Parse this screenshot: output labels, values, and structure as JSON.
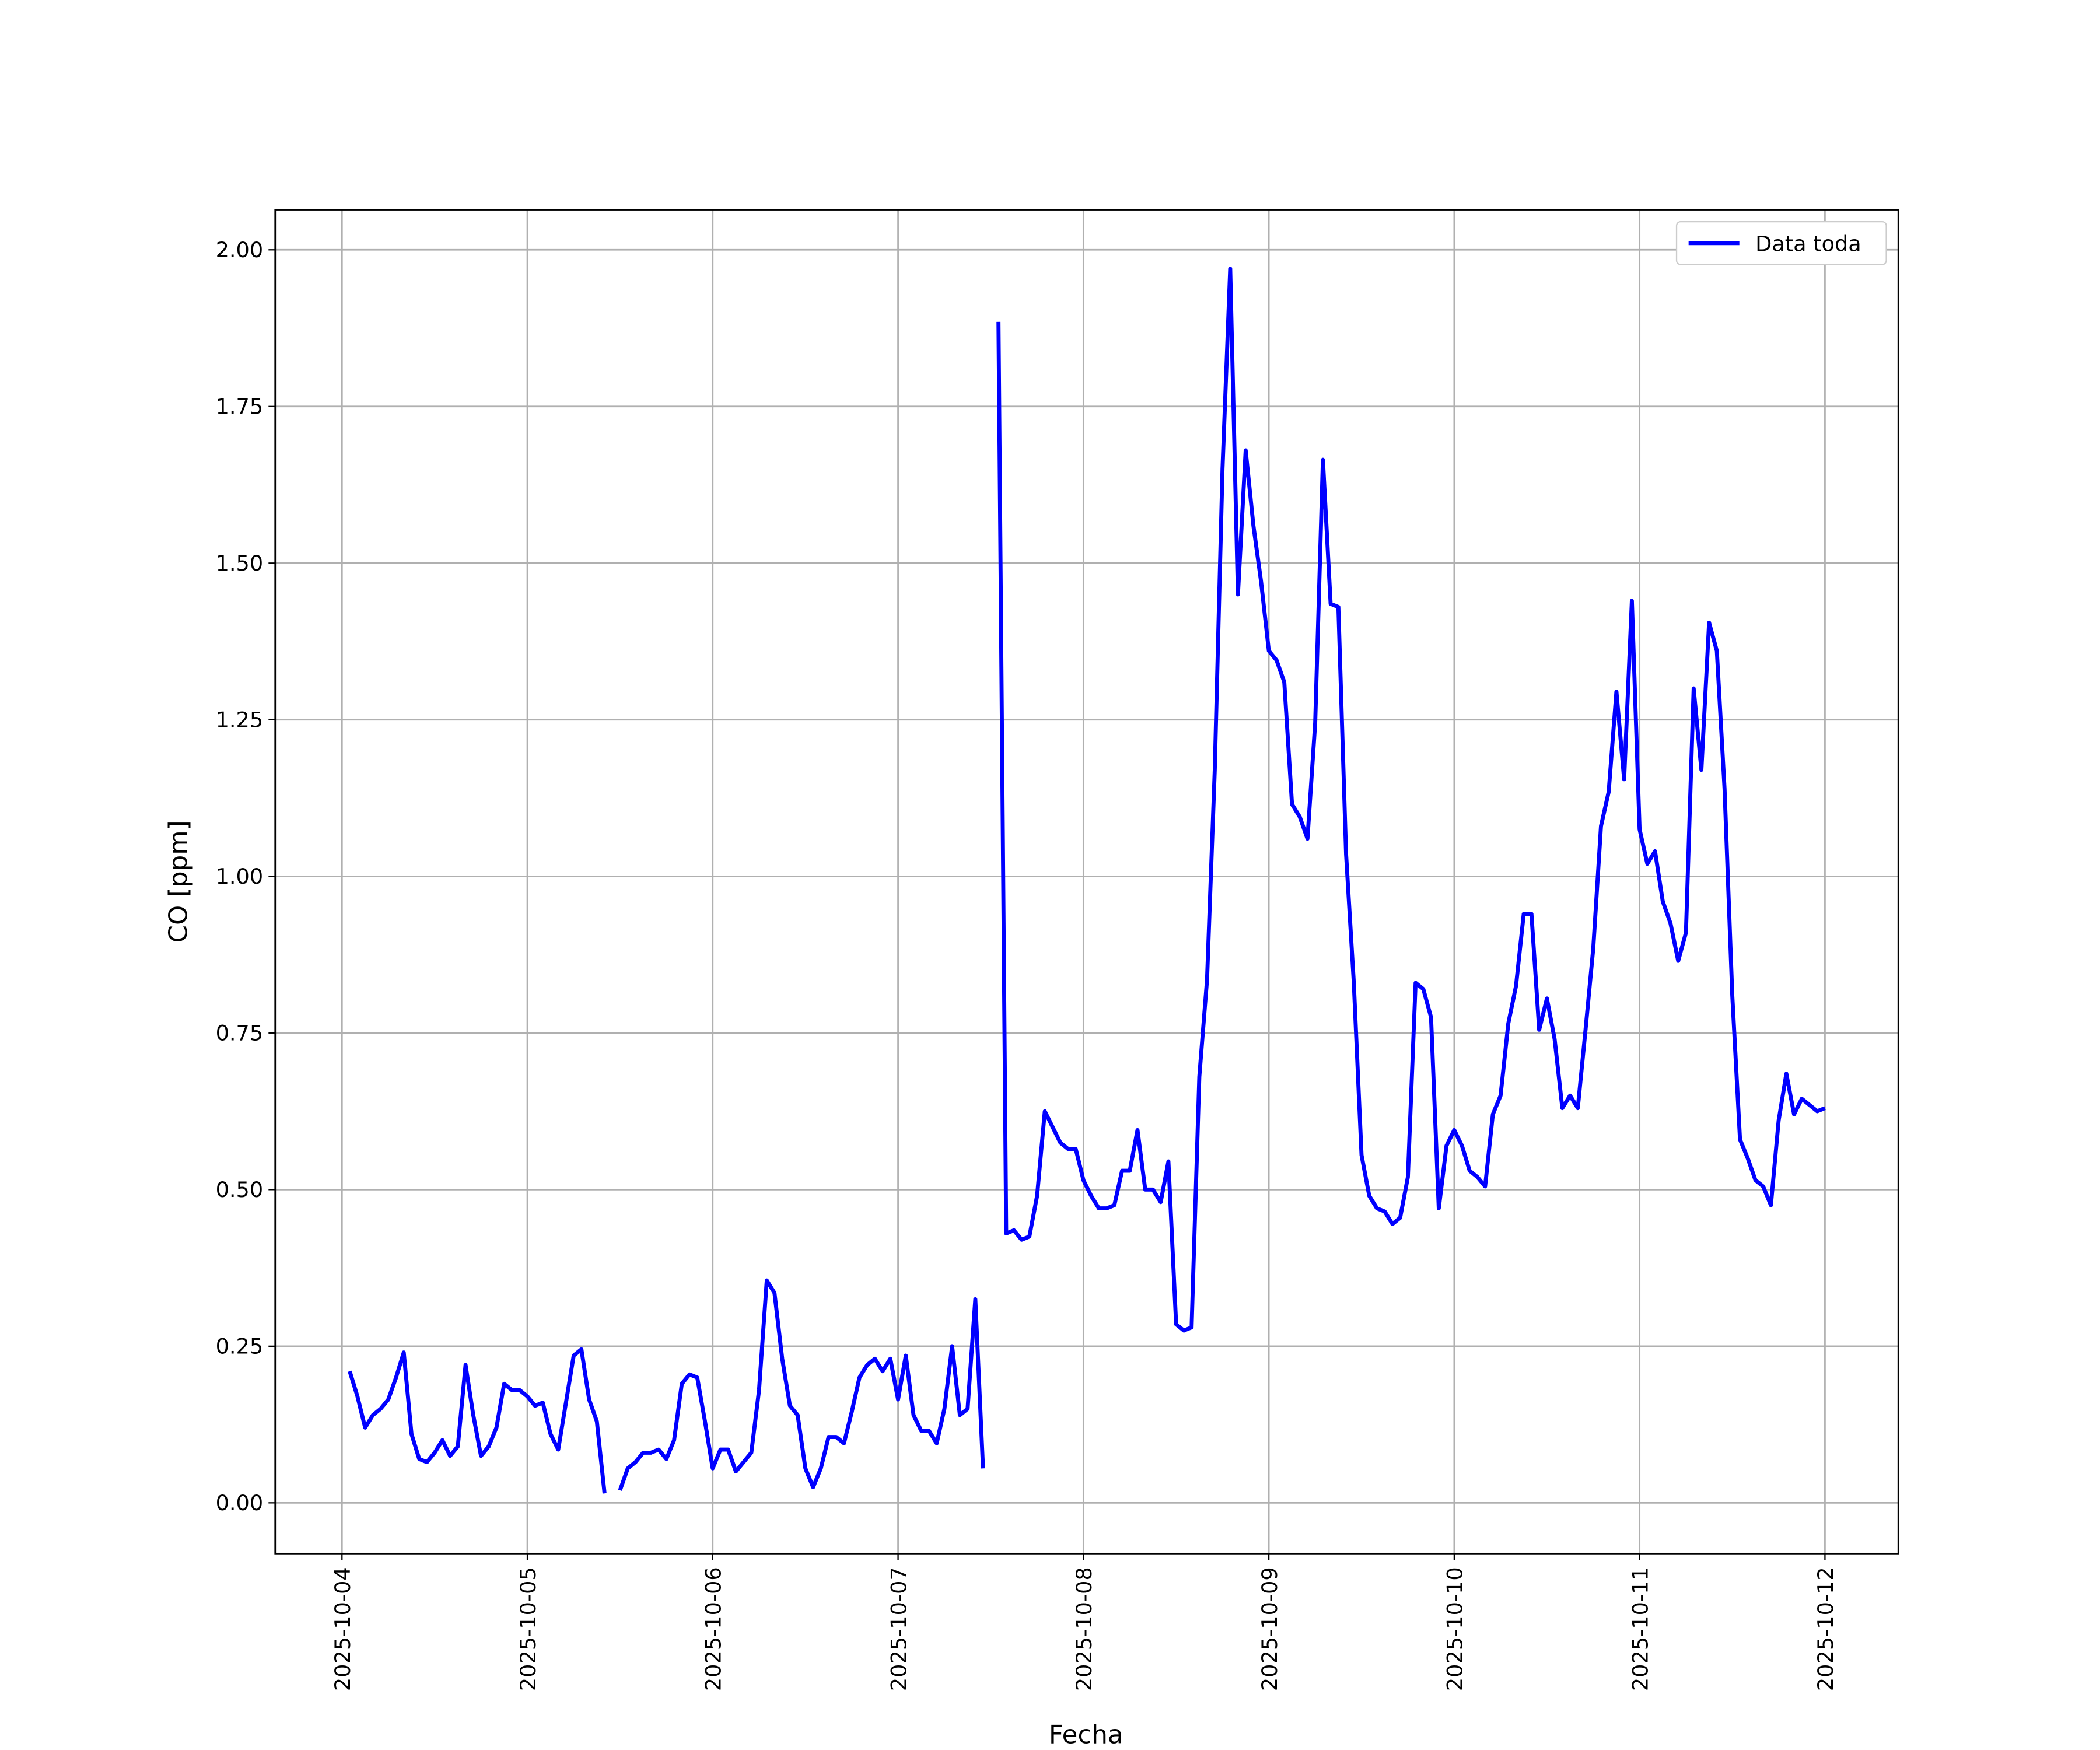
{
  "chart_data": {
    "type": "line",
    "xlabel": "Fecha",
    "ylabel": "CO [ppm]",
    "x": [
      "2025-10-04 01:00",
      "2025-10-04 02:00",
      "2025-10-04 03:00",
      "2025-10-04 04:00",
      "2025-10-04 05:00",
      "2025-10-04 06:00",
      "2025-10-04 07:00",
      "2025-10-04 08:00",
      "2025-10-04 09:00",
      "2025-10-04 10:00",
      "2025-10-04 11:00",
      "2025-10-04 12:00",
      "2025-10-04 13:00",
      "2025-10-04 14:00",
      "2025-10-04 15:00",
      "2025-10-04 16:00",
      "2025-10-04 17:00",
      "2025-10-04 18:00",
      "2025-10-04 19:00",
      "2025-10-04 20:00",
      "2025-10-04 21:00",
      "2025-10-04 22:00",
      "2025-10-04 23:00",
      "2025-10-05 00:00",
      "2025-10-05 01:00",
      "2025-10-05 02:00",
      "2025-10-05 03:00",
      "2025-10-05 04:00",
      "2025-10-05 05:00",
      "2025-10-05 06:00",
      "2025-10-05 07:00",
      "2025-10-05 08:00",
      "2025-10-05 09:00",
      "2025-10-05 10:00",
      "2025-10-05 11:00",
      "2025-10-05 12:00",
      "2025-10-05 13:00",
      "2025-10-05 14:00",
      "2025-10-05 15:00",
      "2025-10-05 16:00",
      "2025-10-05 17:00",
      "2025-10-05 18:00",
      "2025-10-05 19:00",
      "2025-10-05 20:00",
      "2025-10-05 21:00",
      "2025-10-05 22:00",
      "2025-10-05 23:00",
      "2025-10-06 00:00",
      "2025-10-06 01:00",
      "2025-10-06 02:00",
      "2025-10-06 03:00",
      "2025-10-06 04:00",
      "2025-10-06 05:00",
      "2025-10-06 06:00",
      "2025-10-06 07:00",
      "2025-10-06 08:00",
      "2025-10-06 09:00",
      "2025-10-06 10:00",
      "2025-10-06 11:00",
      "2025-10-06 12:00",
      "2025-10-06 13:00",
      "2025-10-06 14:00",
      "2025-10-06 15:00",
      "2025-10-06 16:00",
      "2025-10-06 17:00",
      "2025-10-06 18:00",
      "2025-10-06 19:00",
      "2025-10-06 20:00",
      "2025-10-06 21:00",
      "2025-10-06 22:00",
      "2025-10-06 23:00",
      "2025-10-07 00:00",
      "2025-10-07 01:00",
      "2025-10-07 02:00",
      "2025-10-07 03:00",
      "2025-10-07 04:00",
      "2025-10-07 05:00",
      "2025-10-07 06:00",
      "2025-10-07 07:00",
      "2025-10-07 08:00",
      "2025-10-07 09:00",
      "2025-10-07 10:00",
      "2025-10-07 11:00",
      "2025-10-07 12:00",
      "2025-10-07 13:00",
      "2025-10-07 14:00",
      "2025-10-07 15:00",
      "2025-10-07 16:00",
      "2025-10-07 17:00",
      "2025-10-07 18:00",
      "2025-10-07 19:00",
      "2025-10-07 20:00",
      "2025-10-07 21:00",
      "2025-10-07 22:00",
      "2025-10-07 23:00",
      "2025-10-08 00:00",
      "2025-10-08 01:00",
      "2025-10-08 02:00",
      "2025-10-08 03:00",
      "2025-10-08 04:00",
      "2025-10-08 05:00",
      "2025-10-08 06:00",
      "2025-10-08 07:00",
      "2025-10-08 08:00",
      "2025-10-08 09:00",
      "2025-10-08 10:00",
      "2025-10-08 11:00",
      "2025-10-08 12:00",
      "2025-10-08 13:00",
      "2025-10-08 14:00",
      "2025-10-08 15:00",
      "2025-10-08 16:00",
      "2025-10-08 17:00",
      "2025-10-08 18:00",
      "2025-10-08 19:00",
      "2025-10-08 20:00",
      "2025-10-08 21:00",
      "2025-10-08 22:00",
      "2025-10-08 23:00",
      "2025-10-09 00:00",
      "2025-10-09 01:00",
      "2025-10-09 02:00",
      "2025-10-09 03:00",
      "2025-10-09 04:00",
      "2025-10-09 05:00",
      "2025-10-09 06:00",
      "2025-10-09 07:00",
      "2025-10-09 08:00",
      "2025-10-09 09:00",
      "2025-10-09 10:00",
      "2025-10-09 11:00",
      "2025-10-09 12:00",
      "2025-10-09 13:00",
      "2025-10-09 14:00",
      "2025-10-09 15:00",
      "2025-10-09 16:00",
      "2025-10-09 17:00",
      "2025-10-09 18:00",
      "2025-10-09 19:00",
      "2025-10-09 20:00",
      "2025-10-09 21:00",
      "2025-10-09 22:00",
      "2025-10-09 23:00",
      "2025-10-10 00:00",
      "2025-10-10 01:00",
      "2025-10-10 02:00",
      "2025-10-10 03:00",
      "2025-10-10 04:00",
      "2025-10-10 05:00",
      "2025-10-10 06:00",
      "2025-10-10 07:00",
      "2025-10-10 08:00",
      "2025-10-10 09:00",
      "2025-10-10 10:00",
      "2025-10-10 11:00",
      "2025-10-10 12:00",
      "2025-10-10 13:00",
      "2025-10-10 14:00",
      "2025-10-10 15:00",
      "2025-10-10 16:00",
      "2025-10-10 17:00",
      "2025-10-10 18:00",
      "2025-10-10 19:00",
      "2025-10-10 20:00",
      "2025-10-10 21:00",
      "2025-10-10 22:00",
      "2025-10-10 23:00",
      "2025-10-11 00:00",
      "2025-10-11 01:00",
      "2025-10-11 02:00",
      "2025-10-11 03:00",
      "2025-10-11 04:00",
      "2025-10-11 05:00",
      "2025-10-11 06:00",
      "2025-10-11 07:00",
      "2025-10-11 08:00",
      "2025-10-11 09:00",
      "2025-10-11 10:00",
      "2025-10-11 11:00",
      "2025-10-11 12:00",
      "2025-10-11 13:00",
      "2025-10-11 14:00",
      "2025-10-11 15:00",
      "2025-10-11 16:00",
      "2025-10-11 17:00",
      "2025-10-11 18:00",
      "2025-10-11 19:00",
      "2025-10-11 20:00",
      "2025-10-11 21:00",
      "2025-10-11 22:00",
      "2025-10-11 23:00",
      "2025-10-12 00:00"
    ],
    "series": [
      {
        "name": "Data toda",
        "color": "#0000ff",
        "values": [
          0.21,
          0.17,
          0.12,
          0.14,
          0.15,
          0.165,
          0.2,
          0.24,
          0.11,
          0.07,
          0.065,
          0.08,
          0.1,
          0.075,
          0.09,
          0.22,
          0.14,
          0.075,
          0.09,
          0.12,
          0.19,
          0.18,
          0.18,
          0.17,
          0.155,
          0.16,
          0.11,
          0.085,
          0.16,
          0.235,
          0.245,
          0.165,
          0.13,
          0.015,
          null,
          0.02,
          0.055,
          0.065,
          0.08,
          0.08,
          0.085,
          0.07,
          0.1,
          0.19,
          0.205,
          0.2,
          0.13,
          0.055,
          0.085,
          0.085,
          0.05,
          0.065,
          0.08,
          0.18,
          0.355,
          0.335,
          0.23,
          0.155,
          0.14,
          0.055,
          0.025,
          0.055,
          0.105,
          0.105,
          0.095,
          0.145,
          0.2,
          0.22,
          0.23,
          0.21,
          0.23,
          0.165,
          0.235,
          0.14,
          0.115,
          0.115,
          0.095,
          0.15,
          0.25,
          0.14,
          0.15,
          0.325,
          0.055,
          null,
          1.885,
          0.43,
          0.435,
          0.42,
          0.425,
          0.49,
          0.625,
          0.6,
          0.575,
          0.565,
          0.565,
          0.515,
          0.49,
          0.47,
          0.47,
          0.475,
          0.53,
          0.53,
          0.595,
          0.5,
          0.5,
          0.48,
          0.545,
          0.285,
          0.275,
          0.28,
          0.68,
          0.835,
          1.17,
          1.65,
          1.97,
          1.45,
          1.68,
          1.56,
          1.47,
          1.36,
          1.345,
          1.31,
          1.115,
          1.095,
          1.06,
          1.245,
          1.665,
          1.435,
          1.43,
          1.035,
          0.83,
          0.555,
          0.49,
          0.47,
          0.465,
          0.445,
          0.455,
          0.52,
          0.83,
          0.82,
          0.775,
          0.47,
          0.57,
          0.595,
          0.57,
          0.53,
          0.52,
          0.505,
          0.62,
          0.65,
          0.765,
          0.825,
          0.94,
          0.94,
          0.755,
          0.805,
          0.74,
          0.63,
          0.65,
          0.63,
          0.755,
          0.885,
          1.08,
          1.135,
          1.295,
          1.155,
          1.44,
          1.075,
          1.02,
          1.04,
          0.96,
          0.925,
          0.865,
          0.91,
          1.3,
          1.17,
          1.405,
          1.36,
          1.14,
          0.81,
          0.58,
          0.55,
          0.515,
          0.505,
          0.475,
          0.61,
          0.685,
          0.62,
          0.645,
          0.635,
          0.625,
          0.63
        ]
      }
    ],
    "xlim": [
      "2025-10-03 15:21",
      "2025-10-12 09:30"
    ],
    "xticks": [
      "2025-10-04",
      "2025-10-05",
      "2025-10-06",
      "2025-10-07",
      "2025-10-08",
      "2025-10-09",
      "2025-10-10",
      "2025-10-11",
      "2025-10-12"
    ],
    "ylim": [
      -0.081,
      2.064
    ],
    "yticks": [
      {
        "value": 0,
        "label": "0.00"
      },
      {
        "value": 0.25,
        "label": "0.25"
      },
      {
        "value": 0.5,
        "label": "0.50"
      },
      {
        "value": 0.75,
        "label": "0.75"
      },
      {
        "value": 1,
        "label": "1.00"
      },
      {
        "value": 1.25,
        "label": "1.25"
      },
      {
        "value": 1.5,
        "label": "1.50"
      },
      {
        "value": 1.75,
        "label": "1.75"
      },
      {
        "value": 2,
        "label": "2.00"
      }
    ],
    "grid": true,
    "legend": "upper right"
  }
}
